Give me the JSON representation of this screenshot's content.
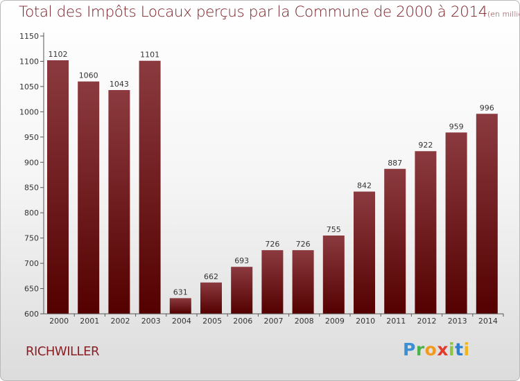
{
  "title": {
    "main": "Total des Impôts Locaux perçus par la Commune de 2000 à 2014",
    "unit": "(en milliers d'€)"
  },
  "commune": "RICHWILLER",
  "logo": {
    "text": "Proxiti",
    "letters": [
      "P",
      "r",
      "o",
      "x",
      "i",
      "t",
      "i"
    ]
  },
  "colors": {
    "bar_top": "#8b3a3f",
    "bar_bottom": "#540000",
    "title": "#7a2127",
    "commune": "#8a1f26"
  },
  "chart_data": {
    "type": "bar",
    "categories": [
      "2000",
      "2001",
      "2002",
      "2003",
      "2004",
      "2005",
      "2006",
      "2007",
      "2008",
      "2009",
      "2010",
      "2011",
      "2012",
      "2013",
      "2014"
    ],
    "values": [
      1102,
      1060,
      1043,
      1101,
      631,
      662,
      693,
      726,
      726,
      755,
      842,
      887,
      922,
      959,
      996
    ],
    "title": "Total des Impôts Locaux perçus par la Commune de 2000 à 2014",
    "ylabel": "",
    "xlabel": "",
    "ylim": [
      600,
      1150
    ],
    "yticks": [
      600,
      650,
      700,
      750,
      800,
      850,
      900,
      950,
      1000,
      1050,
      1100,
      1150
    ],
    "grid": false,
    "data_labels": true
  }
}
